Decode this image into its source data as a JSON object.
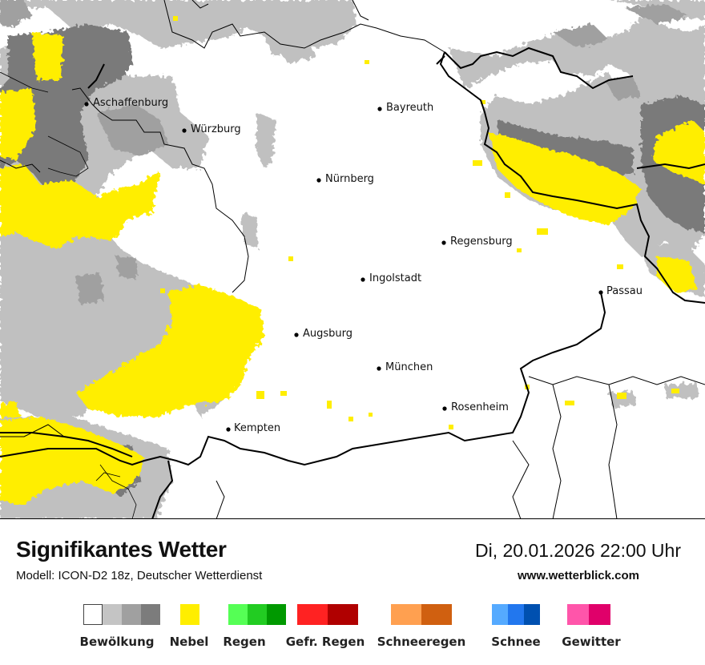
{
  "map": {
    "cities": [
      {
        "name": "Aschaffenburg"
      },
      {
        "name": "Würzburg"
      },
      {
        "name": "Bayreuth"
      },
      {
        "name": "Nürnberg"
      },
      {
        "name": "Regensburg"
      },
      {
        "name": "Ingolstadt"
      },
      {
        "name": "Passau"
      },
      {
        "name": "Augsburg"
      },
      {
        "name": "München"
      },
      {
        "name": "Rosenheim"
      },
      {
        "name": "Kempten"
      }
    ],
    "colors": {
      "cloud_light": "#c0c0c0",
      "cloud_mid": "#a0a0a0",
      "cloud_dark": "#7a7a7a",
      "fog": "#ffee00",
      "border": "#000000"
    }
  },
  "footer": {
    "title": "Signifikantes Wetter",
    "subtitle": "Modell: ICON-D2 18z, Deutscher Wetterdienst",
    "datetime": "Di, 20.01.2026 22:00 Uhr",
    "website": "www.wetterblick.com"
  },
  "legend": [
    {
      "label": "Bewölkung",
      "colors": [
        "#ffffff",
        "#c4c4c4",
        "#a0a0a0",
        "#7c7c7c"
      ]
    },
    {
      "label": "Nebel",
      "colors": [
        "#ffee00"
      ]
    },
    {
      "label": "Regen",
      "colors": [
        "#55ff55",
        "#22cc22",
        "#009900"
      ]
    },
    {
      "label": "Gefr. Regen",
      "colors": [
        "#ff2222",
        "#b00000"
      ]
    },
    {
      "label": "Schneeregen",
      "colors": [
        "#ffa050",
        "#d06010"
      ]
    },
    {
      "label": "Schnee",
      "colors": [
        "#55aaff",
        "#2277ee",
        "#0050b0"
      ]
    },
    {
      "label": "Gewitter",
      "colors": [
        "#ff55aa",
        "#e0006a"
      ]
    }
  ]
}
